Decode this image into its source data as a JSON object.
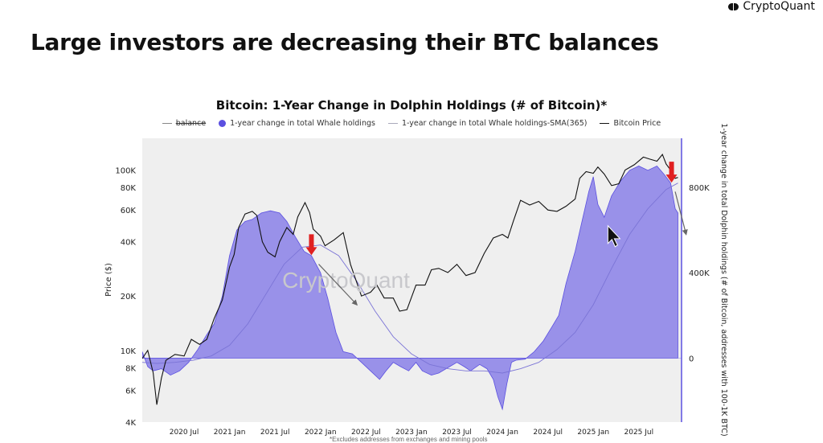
{
  "brand": {
    "name": "CryptoQuant"
  },
  "headline": "Large investors are decreasing their BTC balances",
  "watermark": "CryptoQuant",
  "footnote": "*Excludes addresses from exchanges and mining pools",
  "colors": {
    "area_fill": "#8f86e8",
    "area_stroke": "#5b50e0",
    "price": "#111111",
    "sma": "#7b74d6",
    "arrow_red": "#e02020",
    "plot_bg": "#efefef"
  },
  "chart_data": {
    "type": "area",
    "title": "Bitcoin: 1-Year Change in Dolphin Holdings (# of Bitcoin)*",
    "legend": [
      "balance",
      "1-year change in total Whale holdings",
      "1-year change in total Whale holdings-SMA(365)",
      "Bitcoin Price"
    ],
    "xlabel": "",
    "ylabel_left": "Price ($)",
    "ylabel_right": "1-year change in total Dolphin holdings (# of Bitcoin, addresses with 100-1K BTC)",
    "x_ticks": [
      "2020 Jul",
      "2021 Jan",
      "2021 Jul",
      "2022 Jan",
      "2022 Jul",
      "2023 Jan",
      "2023 Jul",
      "2024 Jan",
      "2024 Jul",
      "2025 Jan",
      "2025 Jul"
    ],
    "x_tick_values": [
      2020.5,
      2021.0,
      2021.5,
      2022.0,
      2022.5,
      2023.0,
      2023.5,
      2024.0,
      2024.5,
      2025.0,
      2025.5
    ],
    "x_range": [
      2020.04,
      2025.97
    ],
    "y_left_scale": "log",
    "y_left_ticks": [
      {
        "label": "4K",
        "value": 4000
      },
      {
        "label": "6K",
        "value": 6000
      },
      {
        "label": "8K",
        "value": 8000
      },
      {
        "label": "10K",
        "value": 10000
      },
      {
        "label": "20K",
        "value": 20000
      },
      {
        "label": "40K",
        "value": 40000
      },
      {
        "label": "60K",
        "value": 60000
      },
      {
        "label": "80K",
        "value": 80000
      },
      {
        "label": "100K",
        "value": 100000
      }
    ],
    "y_left_range": [
      4000,
      150000
    ],
    "y_right_ticks": [
      {
        "label": "0",
        "value": 0
      },
      {
        "label": "400K",
        "value": 400000
      },
      {
        "label": "800K",
        "value": 800000
      }
    ],
    "y_right_range": [
      -300000,
      1030000
    ],
    "price_series": {
      "name": "Bitcoin Price",
      "points": [
        [
          2020.04,
          9000
        ],
        [
          2020.1,
          10000
        ],
        [
          2020.16,
          7500
        ],
        [
          2020.2,
          5000
        ],
        [
          2020.25,
          7000
        ],
        [
          2020.3,
          8800
        ],
        [
          2020.4,
          9500
        ],
        [
          2020.5,
          9300
        ],
        [
          2020.58,
          11500
        ],
        [
          2020.67,
          10800
        ],
        [
          2020.75,
          11500
        ],
        [
          2020.83,
          15000
        ],
        [
          2020.92,
          19000
        ],
        [
          2021.0,
          29000
        ],
        [
          2021.05,
          34000
        ],
        [
          2021.1,
          48000
        ],
        [
          2021.17,
          57000
        ],
        [
          2021.25,
          59000
        ],
        [
          2021.3,
          56000
        ],
        [
          2021.36,
          40000
        ],
        [
          2021.42,
          35000
        ],
        [
          2021.5,
          33000
        ],
        [
          2021.55,
          40000
        ],
        [
          2021.63,
          48000
        ],
        [
          2021.7,
          44000
        ],
        [
          2021.75,
          55000
        ],
        [
          2021.83,
          66000
        ],
        [
          2021.88,
          58000
        ],
        [
          2021.92,
          47000
        ],
        [
          2022.0,
          43000
        ],
        [
          2022.05,
          38000
        ],
        [
          2022.15,
          41000
        ],
        [
          2022.25,
          45000
        ],
        [
          2022.33,
          30000
        ],
        [
          2022.45,
          20000
        ],
        [
          2022.55,
          21000
        ],
        [
          2022.62,
          23000
        ],
        [
          2022.7,
          19500
        ],
        [
          2022.8,
          19500
        ],
        [
          2022.87,
          16500
        ],
        [
          2022.95,
          16800
        ],
        [
          2023.05,
          23000
        ],
        [
          2023.15,
          23000
        ],
        [
          2023.22,
          28000
        ],
        [
          2023.3,
          28500
        ],
        [
          2023.4,
          27000
        ],
        [
          2023.5,
          30000
        ],
        [
          2023.6,
          26000
        ],
        [
          2023.7,
          27000
        ],
        [
          2023.8,
          34500
        ],
        [
          2023.9,
          42000
        ],
        [
          2024.0,
          44000
        ],
        [
          2024.06,
          42000
        ],
        [
          2024.12,
          52000
        ],
        [
          2024.2,
          68000
        ],
        [
          2024.3,
          64000
        ],
        [
          2024.4,
          67000
        ],
        [
          2024.5,
          60000
        ],
        [
          2024.6,
          59000
        ],
        [
          2024.7,
          63000
        ],
        [
          2024.8,
          69000
        ],
        [
          2024.85,
          90000
        ],
        [
          2024.92,
          98000
        ],
        [
          2025.0,
          96000
        ],
        [
          2025.05,
          104000
        ],
        [
          2025.12,
          95000
        ],
        [
          2025.2,
          82000
        ],
        [
          2025.28,
          84000
        ],
        [
          2025.35,
          100000
        ],
        [
          2025.45,
          107000
        ],
        [
          2025.55,
          118000
        ],
        [
          2025.62,
          115000
        ],
        [
          2025.7,
          112000
        ],
        [
          2025.76,
          122000
        ],
        [
          2025.8,
          108000
        ],
        [
          2025.85,
          100000
        ],
        [
          2025.9,
          90000
        ],
        [
          2025.93,
          91000
        ]
      ]
    },
    "whale_change_series": {
      "name": "1-year change in total Whale holdings",
      "points": [
        [
          2020.04,
          30000
        ],
        [
          2020.1,
          -40000
        ],
        [
          2020.16,
          -60000
        ],
        [
          2020.25,
          -50000
        ],
        [
          2020.35,
          -80000
        ],
        [
          2020.45,
          -60000
        ],
        [
          2020.55,
          -20000
        ],
        [
          2020.65,
          40000
        ],
        [
          2020.75,
          110000
        ],
        [
          2020.83,
          160000
        ],
        [
          2020.92,
          290000
        ],
        [
          2021.0,
          480000
        ],
        [
          2021.08,
          600000
        ],
        [
          2021.17,
          640000
        ],
        [
          2021.25,
          650000
        ],
        [
          2021.35,
          680000
        ],
        [
          2021.45,
          690000
        ],
        [
          2021.55,
          680000
        ],
        [
          2021.63,
          640000
        ],
        [
          2021.72,
          570000
        ],
        [
          2021.82,
          500000
        ],
        [
          2021.9,
          480000
        ],
        [
          2022.0,
          400000
        ],
        [
          2022.08,
          280000
        ],
        [
          2022.17,
          120000
        ],
        [
          2022.25,
          30000
        ],
        [
          2022.35,
          20000
        ],
        [
          2022.45,
          -20000
        ],
        [
          2022.55,
          -60000
        ],
        [
          2022.65,
          -100000
        ],
        [
          2022.72,
          -60000
        ],
        [
          2022.8,
          -20000
        ],
        [
          2022.88,
          -40000
        ],
        [
          2022.97,
          -60000
        ],
        [
          2023.05,
          -20000
        ],
        [
          2023.12,
          -60000
        ],
        [
          2023.22,
          -80000
        ],
        [
          2023.3,
          -70000
        ],
        [
          2023.42,
          -40000
        ],
        [
          2023.5,
          -20000
        ],
        [
          2023.58,
          -40000
        ],
        [
          2023.65,
          -60000
        ],
        [
          2023.75,
          -30000
        ],
        [
          2023.83,
          -50000
        ],
        [
          2023.9,
          -100000
        ],
        [
          2023.95,
          -180000
        ],
        [
          2024.0,
          -240000
        ],
        [
          2024.05,
          -120000
        ],
        [
          2024.1,
          -20000
        ],
        [
          2024.15,
          -10000
        ],
        [
          2024.25,
          -5000
        ],
        [
          2024.35,
          30000
        ],
        [
          2024.45,
          80000
        ],
        [
          2024.55,
          150000
        ],
        [
          2024.62,
          200000
        ],
        [
          2024.7,
          350000
        ],
        [
          2024.8,
          500000
        ],
        [
          2024.88,
          650000
        ],
        [
          2024.95,
          780000
        ],
        [
          2025.0,
          850000
        ],
        [
          2025.05,
          720000
        ],
        [
          2025.12,
          660000
        ],
        [
          2025.2,
          760000
        ],
        [
          2025.3,
          830000
        ],
        [
          2025.4,
          880000
        ],
        [
          2025.5,
          900000
        ],
        [
          2025.6,
          880000
        ],
        [
          2025.7,
          900000
        ],
        [
          2025.78,
          860000
        ],
        [
          2025.85,
          820000
        ],
        [
          2025.9,
          700000
        ],
        [
          2025.93,
          680000
        ]
      ]
    },
    "whale_sma_series": {
      "name": "1-year change in total Whale holdings-SMA(365)",
      "points": [
        [
          2020.04,
          -20000
        ],
        [
          2020.2,
          -25000
        ],
        [
          2020.4,
          -20000
        ],
        [
          2020.6,
          -10000
        ],
        [
          2020.8,
          10000
        ],
        [
          2021.0,
          60000
        ],
        [
          2021.2,
          160000
        ],
        [
          2021.4,
          300000
        ],
        [
          2021.6,
          440000
        ],
        [
          2021.8,
          520000
        ],
        [
          2022.0,
          530000
        ],
        [
          2022.2,
          480000
        ],
        [
          2022.4,
          360000
        ],
        [
          2022.6,
          220000
        ],
        [
          2022.8,
          100000
        ],
        [
          2023.0,
          20000
        ],
        [
          2023.2,
          -30000
        ],
        [
          2023.4,
          -50000
        ],
        [
          2023.6,
          -60000
        ],
        [
          2023.8,
          -60000
        ],
        [
          2024.0,
          -70000
        ],
        [
          2024.2,
          -50000
        ],
        [
          2024.4,
          -20000
        ],
        [
          2024.6,
          40000
        ],
        [
          2024.8,
          120000
        ],
        [
          2025.0,
          250000
        ],
        [
          2025.2,
          420000
        ],
        [
          2025.4,
          580000
        ],
        [
          2025.6,
          700000
        ],
        [
          2025.8,
          790000
        ],
        [
          2025.93,
          820000
        ]
      ]
    },
    "annotations": [
      {
        "type": "red-arrow",
        "x": 2021.9,
        "value_right": 520000
      },
      {
        "type": "trend-arrow",
        "from_x": 2021.98,
        "from_right": 440000,
        "to_x": 2022.4,
        "to_right": 250000
      },
      {
        "type": "red-arrow",
        "x": 2025.86,
        "value_right": 860000
      },
      {
        "type": "trend-arrow",
        "from_x": 2025.9,
        "from_right": 780000,
        "to_x": 2026.02,
        "to_right": 580000
      },
      {
        "type": "cursor",
        "x": 2025.16,
        "value_right": 620000
      }
    ]
  }
}
